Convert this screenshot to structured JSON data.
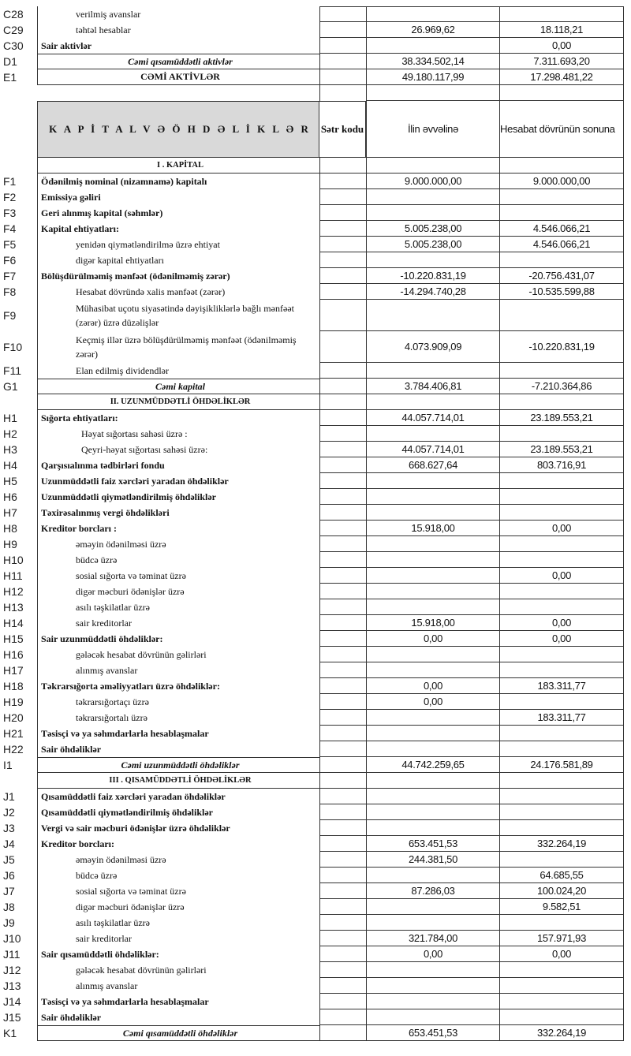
{
  "assets_rows": [
    {
      "code": "C28",
      "label": "verilmiş  avanslar",
      "style": "i",
      "v1": "",
      "v2": ""
    },
    {
      "code": "C29",
      "label": "təhtəl hesablar",
      "style": "i",
      "v1": "26.969,62",
      "v2": "18.118,21"
    },
    {
      "code": "C30",
      "label": "Sair aktivlər",
      "style": "b",
      "v1": "",
      "v2": "0,00"
    },
    {
      "code": "D1",
      "label": "Cəmi qısamüddətli aktivlər",
      "style": "t",
      "v1": "38.334.502,14",
      "v2": "7.311.693,20"
    },
    {
      "code": "E1",
      "label": "CƏMİ AKTİVLƏR",
      "style": "T",
      "v1": "49.180.117,99",
      "v2": "17.298.481,22"
    }
  ],
  "header": {
    "title": "K A P İ T A L  V Ə   Ö H D Ə L İ K L Ə R",
    "satr_kodu": "Sətr kodu",
    "col1": "İlin əvvəlinə",
    "col2": "Hesabat dövrünün sonuna"
  },
  "rows": [
    {
      "code": "",
      "label": "I . KAPİTAL",
      "style": "s",
      "v1": "",
      "v2": ""
    },
    {
      "code": "F1",
      "label": "Ödənilmiş nominal (nizamnamə) kapitalı",
      "style": "b",
      "v1": "9.000.000,00",
      "v2": "9.000.000,00"
    },
    {
      "code": "F2",
      "label": "Emissiya gəliri",
      "style": "b",
      "v1": "",
      "v2": ""
    },
    {
      "code": "F3",
      "label": "Geri alınmış kapital (səhmlər)",
      "style": "b",
      "v1": "",
      "v2": ""
    },
    {
      "code": "F4",
      "label": "Kapital ehtiyatları:",
      "style": "b",
      "v1": "5.005.238,00",
      "v2": "4.546.066,21"
    },
    {
      "code": "F5",
      "label": "yenidən qiymətləndirilmə üzrə ehtiyat",
      "style": "i",
      "v1": "5.005.238,00",
      "v2": "4.546.066,21"
    },
    {
      "code": "F6",
      "label": "digər kapital ehtiyatları",
      "style": "i",
      "v1": "",
      "v2": ""
    },
    {
      "code": "F7",
      "label": "Bölüşdürülməmiş mənfəət (ödənilməmiş zərər)",
      "style": "b",
      "v1": "-10.220.831,19",
      "v2": "-20.756.431,07"
    },
    {
      "code": "F8",
      "label": "Hesabat dövründə xalis mənfəət (zərər)",
      "style": "i",
      "v1": "-14.294.740,28",
      "v2": "-10.535.599,88"
    },
    {
      "code": "F9",
      "label": "Mühasibat uçotu siyasətində dəyişikliklərlə bağlı mənfəət (zərər) üzrə düzəlişlər",
      "style": "i dbl",
      "v1": "",
      "v2": ""
    },
    {
      "code": "F10",
      "label": "Keçmiş illər üzrə bölüşdürülməmiş mənfəət (ödənilməmiş zərər)",
      "style": "i dbl",
      "v1": "4.073.909,09",
      "v2": "-10.220.831,19"
    },
    {
      "code": "F11",
      "label": "Elan edilmiş dividendlər",
      "style": "i",
      "v1": "",
      "v2": ""
    },
    {
      "code": "G1",
      "label": "Cəmi kapital",
      "style": "t",
      "v1": "3.784.406,81",
      "v2": "-7.210.364,86"
    },
    {
      "code": "",
      "label": "II. UZUNMÜDDƏTLİ ÖHDƏLİKLƏR",
      "style": "s",
      "v1": "",
      "v2": ""
    },
    {
      "code": "H1",
      "label": "Sığorta ehtiyatları:",
      "style": "b",
      "v1": "44.057.714,01",
      "v2": "23.189.553,21"
    },
    {
      "code": "H2",
      "label": "Həyat sığortası sahəsi üzrə :",
      "style": "i2",
      "v1": "",
      "v2": ""
    },
    {
      "code": "H3",
      "label": "Qeyri-həyat sığortası sahəsi üzrə:",
      "style": "i2",
      "v1": "44.057.714,01",
      "v2": "23.189.553,21"
    },
    {
      "code": "H4",
      "label": "Qarşısıalınma tədbirləri fondu",
      "style": "b",
      "v1": "668.627,64",
      "v2": "803.716,91"
    },
    {
      "code": "H5",
      "label": "Uzunmüddətli faiz xərcləri yaradan öhdəliklər",
      "style": "b",
      "v1": "",
      "v2": ""
    },
    {
      "code": "H6",
      "label": "Uzunmüddətli qiymətləndirilmiş öhdəliklər",
      "style": "b",
      "v1": "",
      "v2": ""
    },
    {
      "code": "H7",
      "label": "Təxirəsalınmış vergi öhdəlikləri",
      "style": "b",
      "v1": "",
      "v2": ""
    },
    {
      "code": "H8",
      "label": "Kreditor borcları :",
      "style": "b",
      "v1": "15.918,00",
      "v2": "0,00"
    },
    {
      "code": "H9",
      "label": "əməyin ödənilməsi üzrə",
      "style": "i",
      "v1": "",
      "v2": ""
    },
    {
      "code": "H10",
      "label": "büdcə üzrə",
      "style": "i",
      "v1": "",
      "v2": ""
    },
    {
      "code": "H11",
      "label": "sosial sığorta və təminat üzrə",
      "style": "i",
      "v1": "",
      "v2": "0,00"
    },
    {
      "code": "H12",
      "label": "digər məcburi ödənişlər üzrə",
      "style": "i",
      "v1": "",
      "v2": ""
    },
    {
      "code": "H13",
      "label": "asılı təşkilatlar üzrə",
      "style": "i",
      "v1": "",
      "v2": ""
    },
    {
      "code": "H14",
      "label": "sair kreditorlar",
      "style": "i",
      "v1": "15.918,00",
      "v2": "0,00"
    },
    {
      "code": "H15",
      "label": "Sair uzunmüddətli öhdəliklər:",
      "style": "b",
      "v1": "0,00",
      "v2": "0,00"
    },
    {
      "code": "H16",
      "label": "gələcək hesabat dövrünün gəlirləri",
      "style": "i",
      "v1": "",
      "v2": ""
    },
    {
      "code": "H17",
      "label": "alınmış avanslar",
      "style": "i",
      "v1": "",
      "v2": ""
    },
    {
      "code": "H18",
      "label": "Təkrarsığorta əməliyyatları üzrə öhdəliklər:",
      "style": "b",
      "v1": "0,00",
      "v2": "183.311,77"
    },
    {
      "code": "H19",
      "label": "təkrarsığortaçı üzrə",
      "style": "i",
      "v1": "0,00",
      "v2": ""
    },
    {
      "code": "H20",
      "label": "təkrarsığortalı üzrə",
      "style": "i",
      "v1": "",
      "v2": "183.311,77"
    },
    {
      "code": "H21",
      "label": "Təsisçi və ya səhmdarlarla hesablaşmalar",
      "style": "b",
      "v1": "",
      "v2": ""
    },
    {
      "code": "H22",
      "label": "Sair öhdəliklər",
      "style": "b",
      "v1": "",
      "v2": ""
    },
    {
      "code": "I1",
      "label": "Cəmi uzunmüddətli öhdəliklər",
      "style": "t",
      "v1": "44.742.259,65",
      "v2": "24.176.581,89"
    },
    {
      "code": "",
      "label": "III . QISAMÜDDƏTLİ ÖHDƏLİKLƏR",
      "style": "s",
      "v1": "",
      "v2": ""
    },
    {
      "code": "J1",
      "label": "Qısamüddətli faiz xərcləri yaradan öhdəliklər",
      "style": "b",
      "v1": "",
      "v2": ""
    },
    {
      "code": "J2",
      "label": "Qısamüddətli qiymətləndirilmiş öhdəliklər",
      "style": "b",
      "v1": "",
      "v2": ""
    },
    {
      "code": "J3",
      "label": "Vergi və sair məcburi ödənişlər üzrə öhdəliklər",
      "style": "b",
      "v1": "",
      "v2": ""
    },
    {
      "code": "J4",
      "label": "Kreditor borcları:",
      "style": "b",
      "v1": "653.451,53",
      "v2": "332.264,19"
    },
    {
      "code": "J5",
      "label": "əməyin ödənilməsi üzrə",
      "style": "i",
      "v1": "244.381,50",
      "v2": ""
    },
    {
      "code": "J6",
      "label": "büdcə üzrə",
      "style": "i",
      "v1": "",
      "v2": "64.685,55"
    },
    {
      "code": "J7",
      "label": "sosial sığorta və təminat üzrə",
      "style": "i",
      "v1": "87.286,03",
      "v2": "100.024,20"
    },
    {
      "code": "J8",
      "label": "digər məcburi ödənişlər üzrə",
      "style": "i",
      "v1": "",
      "v2": "9.582,51"
    },
    {
      "code": "J9",
      "label": "asılı təşkilatlar üzrə",
      "style": "i",
      "v1": "",
      "v2": ""
    },
    {
      "code": "J10",
      "label": "sair kreditorlar",
      "style": "i",
      "v1": "321.784,00",
      "v2": "157.971,93"
    },
    {
      "code": "J11",
      "label": "Sair qısamüddətli öhdəliklər:",
      "style": "b",
      "v1": "0,00",
      "v2": "0,00"
    },
    {
      "code": "J12",
      "label": "gələcək hesabat dövrünün gəlirləri",
      "style": "i",
      "v1": "",
      "v2": ""
    },
    {
      "code": "J13",
      "label": "alınmış avanslar",
      "style": "i",
      "v1": "",
      "v2": ""
    },
    {
      "code": "J14",
      "label": "Təsisçi və ya səhmdarlarla hesablaşmalar",
      "style": "b",
      "v1": "",
      "v2": ""
    },
    {
      "code": "J15",
      "label": "Sair öhdəliklər",
      "style": "b",
      "v1": "",
      "v2": ""
    },
    {
      "code": "K1",
      "label": "Cəmi qısamüddətli öhdəliklər",
      "style": "t",
      "v1": "653.451,53",
      "v2": "332.264,19"
    }
  ]
}
